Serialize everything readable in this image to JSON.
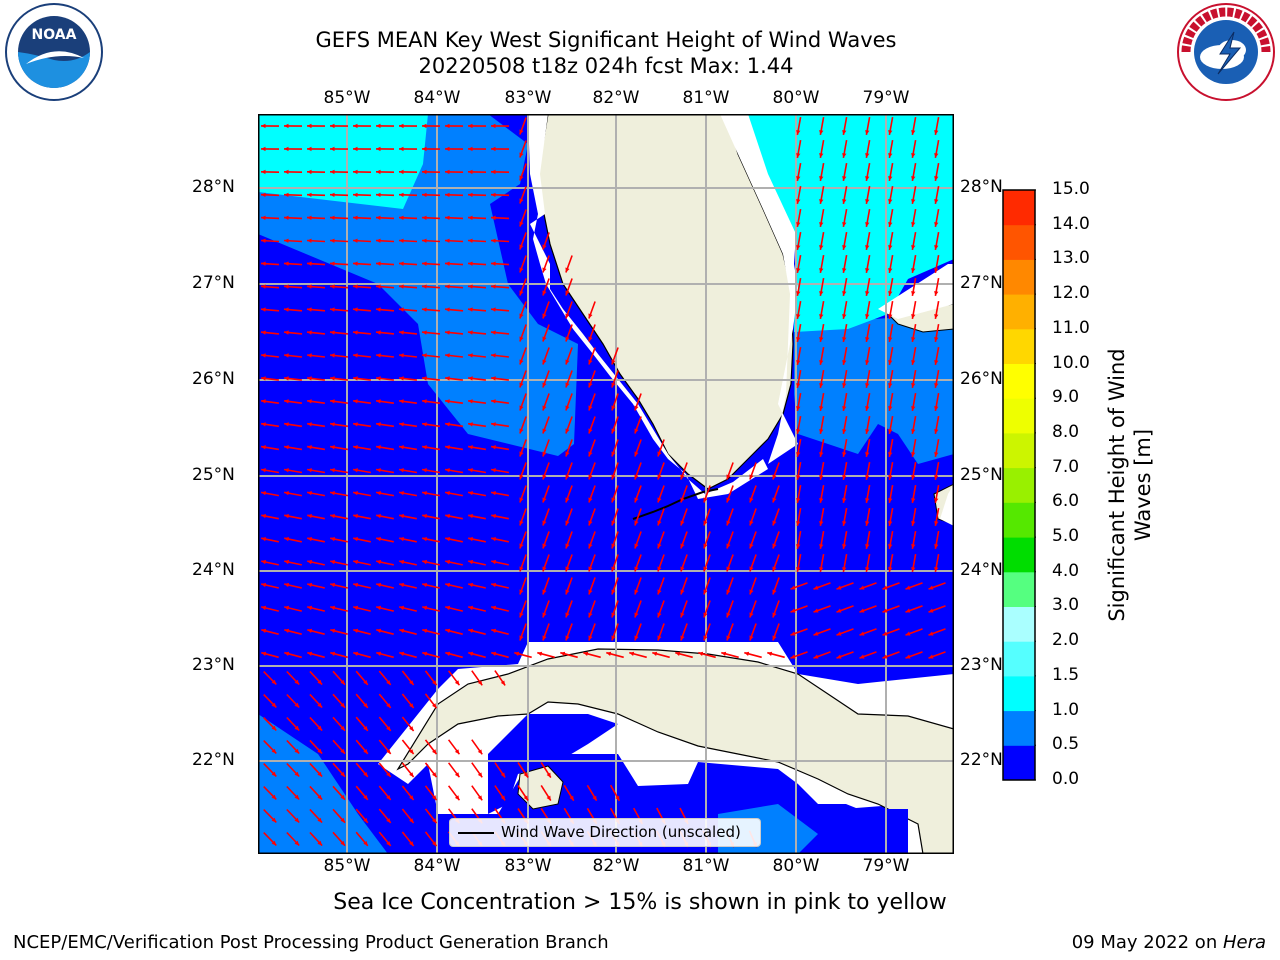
{
  "header": {
    "title_line1": "GEFS MEAN Key West Significant Height of Wind Waves",
    "title_line2": "20220508 t18z 024h fcst   Max: 1.44"
  },
  "map": {
    "lon_labels": [
      "85°W",
      "84°W",
      "83°W",
      "82°W",
      "81°W",
      "80°W",
      "79°W"
    ],
    "lat_labels": [
      "28°N",
      "27°N",
      "26°N",
      "25°N",
      "24°N",
      "23°N",
      "22°N"
    ],
    "legend_label": "Wind Wave Direction (unscaled)",
    "colors": {
      "land": "#efefdc",
      "ocean_low": "#0000ff",
      "ocean_mid": "#0080ff",
      "ocean_high": "#00ffff",
      "arrow": "#ff0000",
      "grid": "#b0b0b0"
    }
  },
  "colorbar": {
    "ticks": [
      "0.0",
      "0.5",
      "1.0",
      "1.5",
      "2.0",
      "3.0",
      "4.0",
      "5.0",
      "6.0",
      "7.0",
      "8.0",
      "9.0",
      "10.0",
      "11.0",
      "12.0",
      "13.0",
      "14.0",
      "15.0"
    ],
    "colors": [
      "#0000ff",
      "#0080ff",
      "#00ffff",
      "#55ffff",
      "#aaffff",
      "#55ff80",
      "#00dd00",
      "#55e800",
      "#99f000",
      "#ccf500",
      "#eeff00",
      "#ffff00",
      "#ffd700",
      "#ffb000",
      "#ff8800",
      "#ff5500",
      "#ff2a00",
      "#ff0000"
    ],
    "title": "Significant Height of Wind Waves [m]"
  },
  "footer": {
    "sea_ice_note": "Sea Ice Concentration > 15% is shown in pink to yellow",
    "left": "NCEP/EMC/Verification Post Processing Product Generation Branch",
    "date": "09 May 2022 on ",
    "machine": "Hera"
  },
  "logos": {
    "noaa": "NOAA",
    "noaa_ring": "NATIONAL OCEANIC AND ATMOSPHERIC ADMINISTRATION · U.S. DEPARTMENT OF COMMERCE",
    "nws_ring": "NATIONAL WEATHER SERVICE"
  }
}
